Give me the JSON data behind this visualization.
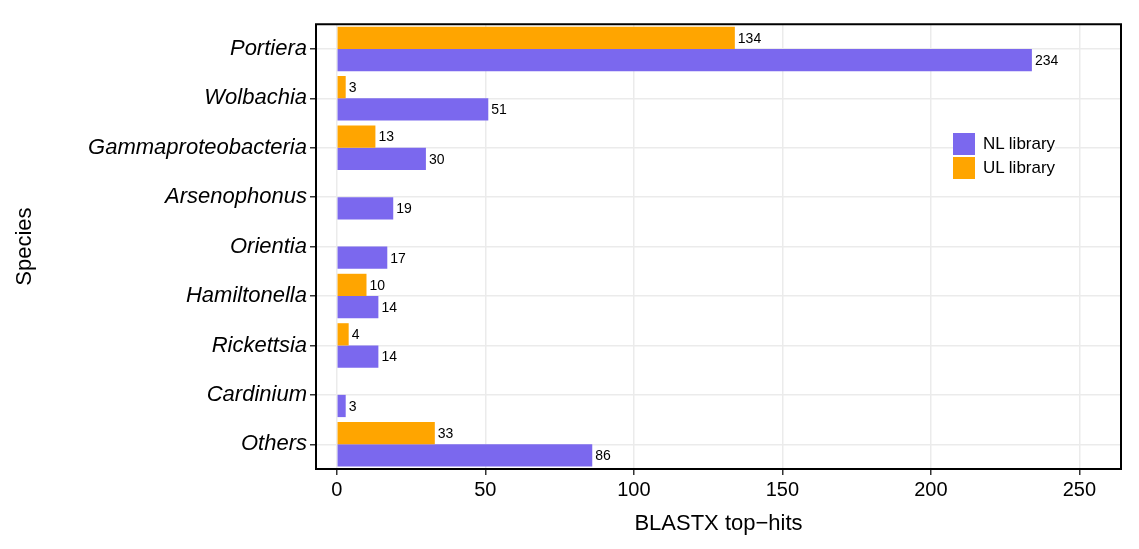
{
  "chart_data": {
    "type": "bar",
    "orientation": "horizontal",
    "xlabel": "BLASTX top−hits",
    "ylabel": "Species",
    "categories": [
      "Portiera",
      "Wolbachia",
      "Gammaproteobacteria",
      "Arsenophonus",
      "Orientia",
      "Hamiltonella",
      "Rickettsia",
      "Cardinium",
      "Others"
    ],
    "series": [
      {
        "name": "NL library",
        "color": "#7b68ee",
        "values": [
          234,
          51,
          30,
          19,
          17,
          14,
          14,
          3,
          86
        ]
      },
      {
        "name": "UL library",
        "color": "#ffa500",
        "values": [
          134,
          3,
          13,
          null,
          null,
          10,
          4,
          null,
          33
        ]
      }
    ],
    "xlim": [
      -7,
      264
    ],
    "xticks": [
      0,
      50,
      100,
      150,
      200,
      250
    ],
    "grid": true,
    "legend": "top right",
    "data_labels": true
  }
}
